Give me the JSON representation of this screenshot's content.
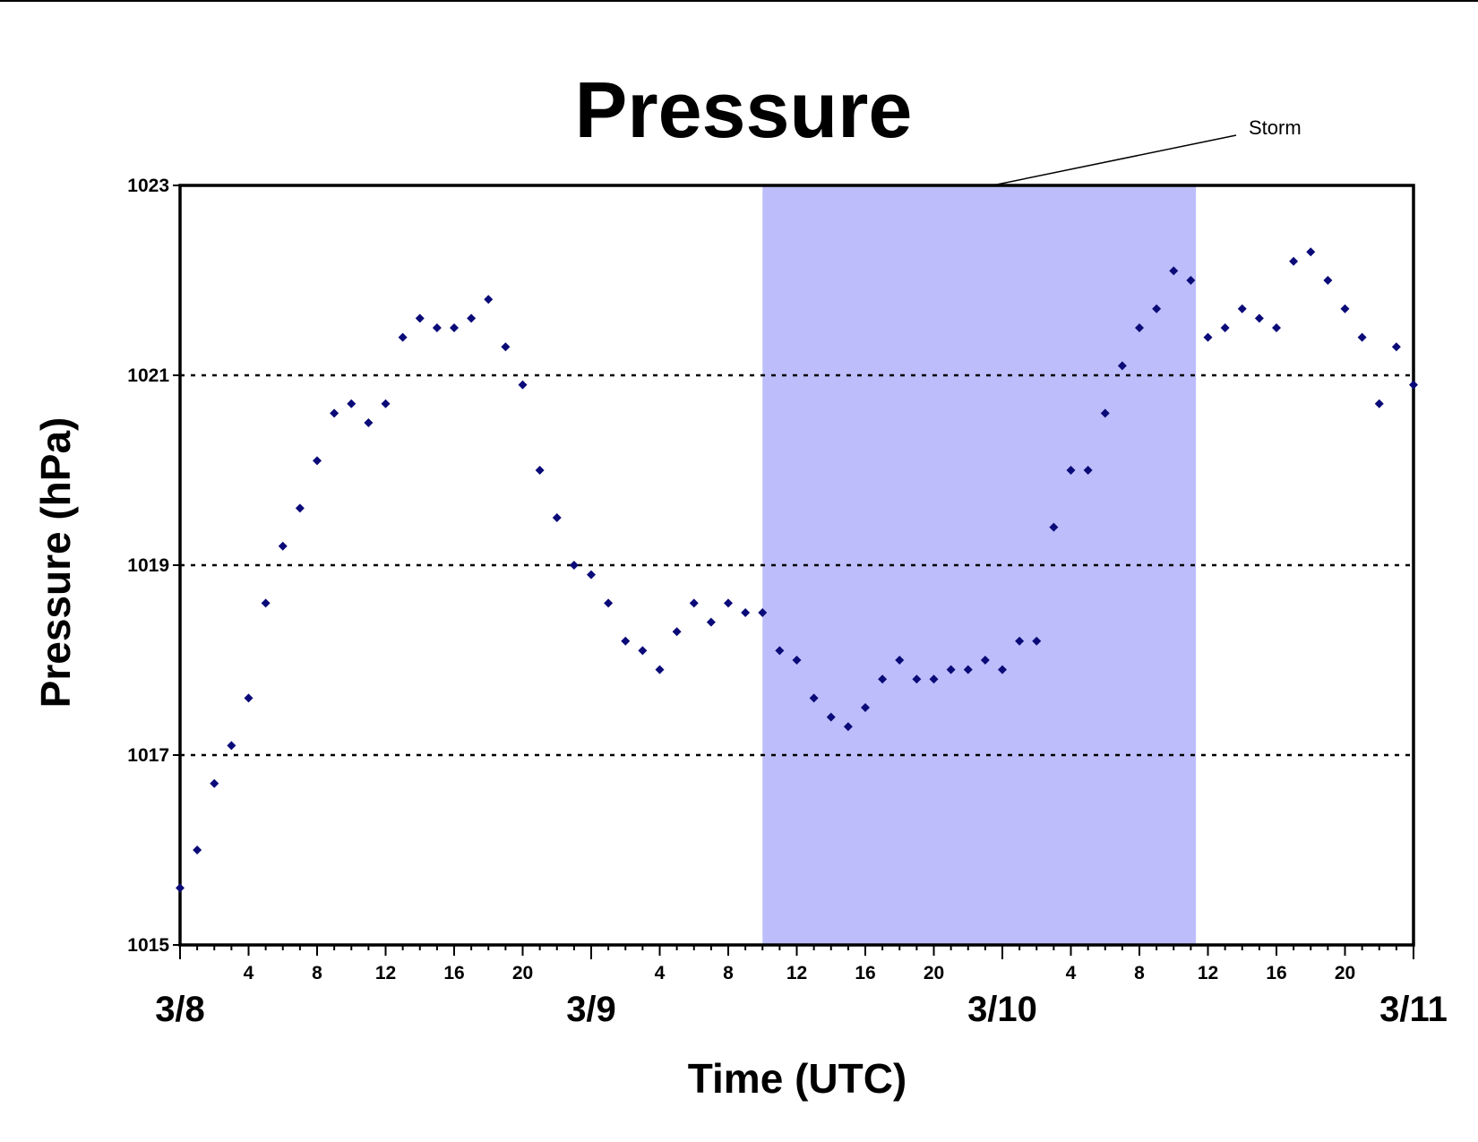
{
  "chart_data": {
    "type": "scatter",
    "title": "Pressure",
    "xlabel": "Time (UTC)",
    "ylabel": "Pressure (hPa)",
    "ylim": [
      1015,
      1023
    ],
    "y_ticks": [
      "1015",
      "1017",
      "1019",
      "1021",
      "1023"
    ],
    "x_unit": "hours since 3/8 00 UTC",
    "xlim": [
      0,
      72
    ],
    "hour_tick_labels": [
      "4",
      "8",
      "12",
      "16",
      "20"
    ],
    "day_labels": [
      "3/8",
      "3/9",
      "3/10",
      "3/11"
    ],
    "grid": "horizontal dotted at 1017, 1019, 1021",
    "marker_color": "#0a0a78",
    "storm": {
      "label": "Storm",
      "start_hour": 34,
      "end_hour": 59.3,
      "color": "#bdbdfb"
    },
    "series": [
      {
        "x": [
          0,
          1,
          2,
          3,
          4,
          5,
          6,
          7,
          8,
          9,
          10,
          11,
          12,
          13,
          14,
          15,
          16,
          17,
          18,
          19,
          20,
          21,
          22,
          23,
          24,
          25,
          26,
          27,
          28,
          29,
          30,
          31,
          32,
          33,
          34,
          35,
          36,
          37,
          38,
          39,
          40,
          41,
          42,
          43,
          44,
          45,
          46,
          47,
          48,
          49,
          50,
          51,
          52,
          53,
          54,
          55,
          56,
          57,
          58,
          59,
          60,
          61,
          62,
          63,
          64,
          65,
          66,
          67,
          68,
          69,
          70,
          71,
          72
        ],
        "values": [
          1015.6,
          1016.0,
          1016.7,
          1017.1,
          1017.6,
          1018.6,
          1019.2,
          1019.6,
          1020.1,
          1020.6,
          1020.7,
          1020.5,
          1020.7,
          1021.4,
          1021.6,
          1021.5,
          1021.5,
          1021.6,
          1021.8,
          1021.3,
          1020.9,
          1020.0,
          1019.5,
          1019.0,
          1018.9,
          1018.6,
          1018.2,
          1018.1,
          1017.9,
          1018.3,
          1018.6,
          1018.4,
          1018.6,
          1018.5,
          1018.5,
          1018.1,
          1018.0,
          1017.6,
          1017.4,
          1017.3,
          1017.5,
          1017.8,
          1018.0,
          1017.8,
          1017.8,
          1017.9,
          1017.9,
          1018.0,
          1017.9,
          1018.2,
          1018.2,
          1019.4,
          1020.0,
          1020.0,
          1020.6,
          1021.1,
          1021.5,
          1021.7,
          1022.1,
          1022.0,
          1021.4,
          1021.5,
          1021.7,
          1021.6,
          1021.5,
          1022.2,
          1022.3,
          1022.0,
          1021.7,
          1021.4,
          1020.7,
          1021.3,
          1020.9
        ]
      }
    ]
  }
}
